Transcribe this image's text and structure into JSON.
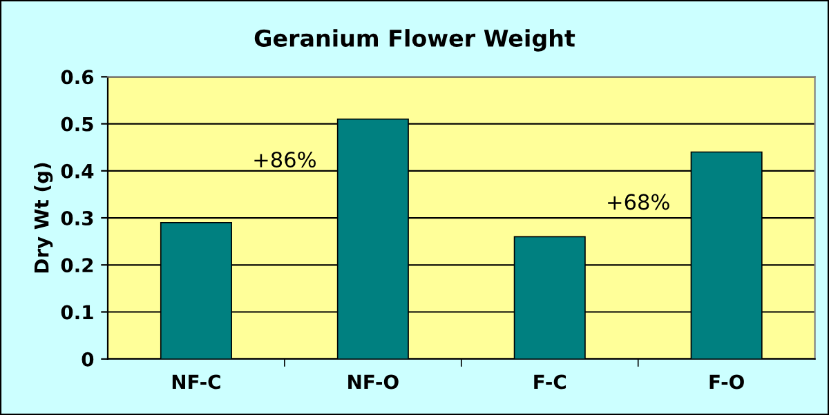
{
  "chart_data": {
    "type": "bar",
    "title": "Geranium Flower Weight",
    "ylabel": "Dry Wt (g)",
    "categories": [
      "NF-C",
      "NF-O",
      "F-C",
      "F-O"
    ],
    "values": [
      0.29,
      0.51,
      0.26,
      0.44
    ],
    "color": "#008080",
    "ylim": [
      0,
      0.6
    ],
    "yticks": [
      0,
      0.1,
      0.2,
      0.3,
      0.4,
      0.5,
      0.6
    ],
    "grid": "y",
    "annotations": [
      "+86%",
      "+68%"
    ]
  }
}
